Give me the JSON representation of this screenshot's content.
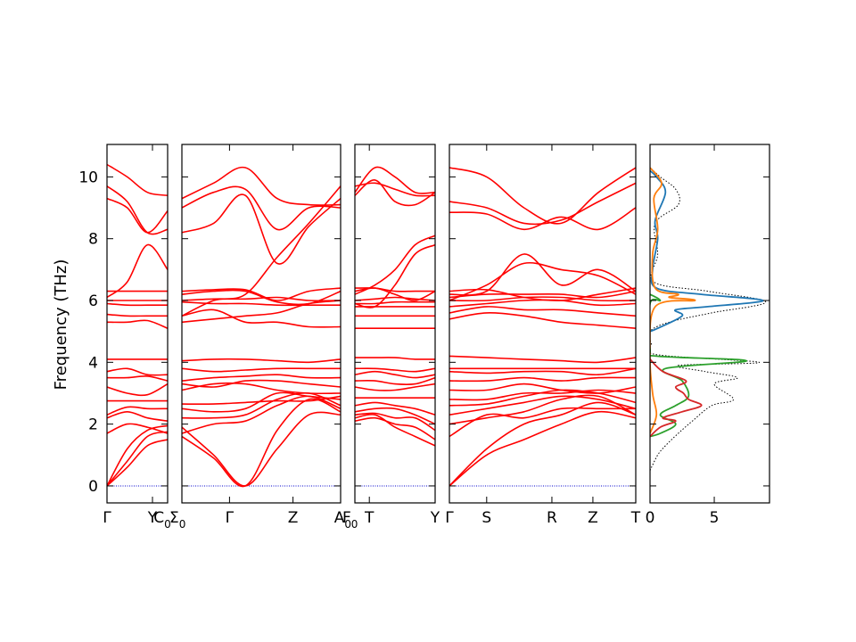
{
  "chart_data": {
    "type": "line",
    "description_free": true,
    "ylabel": "Frequency (THz)",
    "ylim": [
      -0.55,
      11.05
    ],
    "y_ticks": [
      "0",
      "2",
      "4",
      "6",
      "8",
      "10"
    ],
    "y_tick_values": [
      0,
      2,
      4,
      6,
      8,
      10
    ],
    "band_color": "#ff0000",
    "zero_line_color": "#0000cc",
    "panels": [
      {
        "id": "p1",
        "x_ticks": [
          {
            "label": "Γ",
            "pos": 0
          },
          {
            "label": "Y",
            "pos": 0.75
          }
        ],
        "end_labels": [
          {
            "label": "C",
            "sub": "0"
          }
        ],
        "bands": [
          [
            0,
            0.6,
            1.3,
            1.5
          ],
          [
            0,
            0.8,
            1.6,
            1.75
          ],
          [
            0,
            1.2,
            1.8,
            1.95
          ],
          [
            1.7,
            2.0,
            1.9,
            1.7
          ],
          [
            2.2,
            2.4,
            2.2,
            2.1
          ],
          [
            2.3,
            2.55,
            2.5,
            2.5
          ],
          [
            2.75,
            2.75,
            2.75,
            2.75
          ],
          [
            3.2,
            3.0,
            2.95,
            3.3
          ],
          [
            3.5,
            3.5,
            3.55,
            3.4
          ],
          [
            3.7,
            3.8,
            3.6,
            3.6
          ],
          [
            4.1,
            4.1,
            4.1,
            4.1
          ],
          [
            5.3,
            5.3,
            5.35,
            5.1
          ],
          [
            5.55,
            5.5,
            5.5,
            5.5
          ],
          [
            5.9,
            5.85,
            5.85,
            5.85
          ],
          [
            6.0,
            6.0,
            6.0,
            6.0
          ],
          [
            6.3,
            6.3,
            6.3,
            6.3
          ],
          [
            6.1,
            6.6,
            7.8,
            7.0
          ],
          [
            9.3,
            9.0,
            8.2,
            8.9
          ],
          [
            9.7,
            9.2,
            8.2,
            8.3
          ],
          [
            10.4,
            10.0,
            9.5,
            9.4
          ]
        ]
      },
      {
        "id": "p2",
        "x_ticks": [
          {
            "label": "Σ",
            "sub": "0",
            "pos": 0
          },
          {
            "label": "Γ",
            "pos": 0.3
          },
          {
            "label": "Z",
            "pos": 0.7
          },
          {
            "label": "A",
            "sub": "0",
            "pos": 1
          }
        ],
        "bands": [
          [
            1.9,
            1.0,
            0,
            1.2,
            2.3,
            2.3
          ],
          [
            1.6,
            0.9,
            0,
            1.8,
            2.8,
            2.4
          ],
          [
            1.7,
            2.0,
            2.1,
            2.6,
            2.9,
            2.5
          ],
          [
            2.2,
            2.2,
            2.3,
            2.8,
            3.0,
            2.6
          ],
          [
            2.5,
            2.4,
            2.5,
            3.0,
            2.9,
            2.8
          ],
          [
            2.65,
            2.65,
            2.7,
            2.75,
            2.75,
            2.9
          ],
          [
            3.1,
            3.3,
            3.3,
            3.1,
            3.0,
            3.0
          ],
          [
            3.3,
            3.2,
            3.4,
            3.4,
            3.3,
            3.2
          ],
          [
            3.4,
            3.5,
            3.55,
            3.6,
            3.5,
            3.5
          ],
          [
            3.8,
            3.7,
            3.75,
            3.8,
            3.8,
            3.8
          ],
          [
            4.05,
            4.1,
            4.1,
            4.05,
            4.0,
            4.1
          ],
          [
            5.3,
            5.4,
            5.5,
            5.6,
            5.9,
            6.0
          ],
          [
            5.5,
            5.7,
            5.3,
            5.3,
            5.15,
            5.15
          ],
          [
            5.95,
            5.9,
            5.9,
            5.85,
            5.85,
            5.85
          ],
          [
            6.0,
            6.05,
            6.05,
            6.1,
            6.0,
            6.0
          ],
          [
            6.2,
            6.3,
            6.3,
            5.95,
            5.9,
            6.3
          ],
          [
            6.3,
            6.35,
            6.35,
            6.0,
            6.3,
            6.4
          ],
          [
            5.5,
            6.0,
            6.2,
            7.4,
            8.5,
            9.7
          ],
          [
            8.2,
            8.5,
            9.4,
            7.2,
            8.4,
            9.3
          ],
          [
            9.0,
            9.5,
            9.6,
            8.3,
            9.0,
            9.0
          ],
          [
            9.3,
            9.8,
            10.3,
            9.3,
            9.1,
            9.1
          ]
        ]
      },
      {
        "id": "p3",
        "x_ticks": [
          {
            "label": "F",
            "sub": "0",
            "pos": 0
          },
          {
            "label": "T",
            "pos": 0.18
          },
          {
            "label": "Y",
            "pos": 1
          }
        ],
        "bands": [
          [
            2.2,
            2.3,
            1.9,
            1.6,
            1.3
          ],
          [
            2.1,
            2.2,
            2.0,
            1.9,
            1.5
          ],
          [
            2.3,
            2.35,
            2.2,
            2.2,
            1.8
          ],
          [
            2.4,
            2.5,
            2.5,
            2.3,
            2.0
          ],
          [
            2.6,
            2.7,
            2.6,
            2.5,
            2.3
          ],
          [
            2.85,
            2.85,
            2.85,
            2.85,
            2.85
          ],
          [
            3.2,
            3.1,
            3.1,
            3.2,
            3.3
          ],
          [
            3.4,
            3.4,
            3.3,
            3.3,
            3.5
          ],
          [
            3.6,
            3.7,
            3.6,
            3.5,
            3.6
          ],
          [
            3.8,
            3.8,
            3.75,
            3.7,
            3.8
          ],
          [
            4.15,
            4.15,
            4.15,
            4.1,
            4.1
          ],
          [
            5.1,
            5.1,
            5.1,
            5.1,
            5.1
          ],
          [
            5.5,
            5.5,
            5.5,
            5.5,
            5.5
          ],
          [
            5.8,
            5.8,
            5.8,
            5.8,
            5.8
          ],
          [
            5.9,
            5.9,
            5.95,
            5.95,
            5.95
          ],
          [
            6.0,
            6.05,
            6.1,
            6.05,
            6.0
          ],
          [
            6.3,
            6.4,
            6.2,
            6.0,
            6.3
          ],
          [
            6.4,
            6.4,
            6.3,
            6.3,
            6.3
          ],
          [
            5.9,
            5.8,
            6.5,
            7.5,
            7.8
          ],
          [
            6.2,
            6.5,
            7.0,
            7.8,
            8.1
          ],
          [
            9.4,
            9.9,
            9.2,
            9.1,
            9.5
          ],
          [
            9.7,
            9.8,
            9.6,
            9.4,
            9.4
          ],
          [
            9.5,
            10.3,
            10.0,
            9.5,
            9.5
          ]
        ]
      },
      {
        "id": "p4",
        "x_ticks": [
          {
            "label": "Γ",
            "pos": 0
          },
          {
            "label": "S",
            "pos": 0.2
          },
          {
            "label": "R",
            "pos": 0.55
          },
          {
            "label": "Z",
            "pos": 0.77
          },
          {
            "label": "T",
            "pos": 1
          }
        ],
        "bands": [
          [
            0,
            1.0,
            1.5,
            2.0,
            2.4,
            2.2
          ],
          [
            0,
            1.2,
            2.0,
            2.3,
            2.7,
            2.3
          ],
          [
            1.6,
            2.3,
            2.2,
            2.5,
            2.5,
            2.5
          ],
          [
            2.0,
            2.2,
            2.4,
            2.8,
            2.9,
            2.3
          ],
          [
            2.3,
            2.5,
            2.7,
            2.9,
            2.8,
            2.5
          ],
          [
            2.6,
            2.65,
            2.9,
            3.1,
            3.0,
            2.7
          ],
          [
            2.8,
            2.8,
            3.0,
            3.0,
            3.1,
            3.0
          ],
          [
            3.1,
            3.1,
            3.3,
            3.1,
            3.0,
            3.2
          ],
          [
            3.4,
            3.4,
            3.5,
            3.4,
            3.5,
            3.5
          ],
          [
            3.7,
            3.65,
            3.7,
            3.7,
            3.6,
            3.8
          ],
          [
            3.8,
            3.8,
            3.8,
            3.8,
            3.8,
            3.8
          ],
          [
            4.2,
            4.15,
            4.1,
            4.05,
            4.0,
            4.15
          ],
          [
            5.4,
            5.6,
            5.5,
            5.3,
            5.2,
            5.1
          ],
          [
            5.6,
            5.8,
            5.7,
            5.7,
            5.6,
            5.5
          ],
          [
            5.8,
            5.9,
            6.0,
            6.0,
            5.85,
            5.9
          ],
          [
            6.0,
            6.0,
            6.1,
            6.1,
            6.0,
            6.0
          ],
          [
            6.1,
            6.2,
            6.2,
            6.2,
            6.1,
            6.3
          ],
          [
            6.3,
            6.35,
            6.1,
            6.0,
            6.2,
            6.4
          ],
          [
            6.2,
            6.3,
            7.5,
            6.5,
            7.0,
            6.3
          ],
          [
            6.0,
            6.5,
            7.2,
            7.0,
            6.8,
            6.2
          ],
          [
            8.85,
            8.8,
            8.3,
            8.7,
            8.3,
            9.0
          ],
          [
            9.2,
            9.0,
            8.5,
            8.6,
            9.2,
            9.8
          ],
          [
            10.3,
            10.0,
            9.0,
            8.5,
            9.5,
            10.3
          ]
        ]
      }
    ],
    "dos_panel": {
      "xlim": [
        0,
        9.3
      ],
      "x_ticks": [
        "0",
        "5"
      ],
      "x_tick_values": [
        0,
        5
      ],
      "series": [
        {
          "color": "#000000",
          "style": "dotted",
          "points": [
            [
              0,
              0.5
            ],
            [
              0.6,
              1.0
            ],
            [
              1.2,
              1.3
            ],
            [
              2.2,
              1.7
            ],
            [
              3.3,
              2.1
            ],
            [
              4.8,
              2.6
            ],
            [
              6.5,
              2.8
            ],
            [
              5.0,
              3.3
            ],
            [
              6.8,
              3.5
            ],
            [
              4.3,
              3.7
            ],
            [
              2.2,
              3.9
            ],
            [
              8.5,
              4.0
            ],
            [
              0.5,
              4.25
            ],
            [
              0.1,
              4.6
            ],
            [
              0,
              5.0
            ],
            [
              1.5,
              5.3
            ],
            [
              4.8,
              5.6
            ],
            [
              9.0,
              5.95
            ],
            [
              4.5,
              6.3
            ],
            [
              0.3,
              6.6
            ],
            [
              0.6,
              7.5
            ],
            [
              0.4,
              8.5
            ],
            [
              2.2,
              9.1
            ],
            [
              2.0,
              9.6
            ],
            [
              0.8,
              10.0
            ],
            [
              0,
              10.3
            ]
          ]
        },
        {
          "color": "#1f77b4",
          "style": "solid",
          "points": [
            [
              0,
              5.0
            ],
            [
              0.6,
              5.1
            ],
            [
              2.5,
              5.5
            ],
            [
              2.0,
              5.7
            ],
            [
              4.5,
              5.8
            ],
            [
              8.8,
              6.0
            ],
            [
              4.0,
              6.2
            ],
            [
              0.5,
              6.4
            ],
            [
              0.2,
              7.0
            ],
            [
              0.6,
              8.0
            ],
            [
              0.4,
              8.6
            ],
            [
              1.2,
              9.5
            ],
            [
              0.5,
              10.0
            ],
            [
              0,
              10.2
            ]
          ]
        },
        {
          "color": "#ff7f0e",
          "style": "solid",
          "points": [
            [
              0,
              1.7
            ],
            [
              0.5,
              2.3
            ],
            [
              0.2,
              3.0
            ],
            [
              0,
              4.2
            ],
            [
              0.4,
              5.8
            ],
            [
              3.5,
              6.0
            ],
            [
              1.5,
              6.1
            ],
            [
              2.2,
              6.2
            ],
            [
              0.4,
              6.4
            ],
            [
              0.2,
              7.5
            ],
            [
              0.6,
              8.3
            ],
            [
              0.3,
              9.3
            ],
            [
              0.9,
              9.8
            ],
            [
              0,
              10.3
            ]
          ]
        },
        {
          "color": "#2ca02c",
          "style": "solid",
          "points": [
            [
              0,
              1.6
            ],
            [
              0.8,
              1.7
            ],
            [
              2.0,
              2.0
            ],
            [
              0.8,
              2.3
            ],
            [
              2.0,
              2.6
            ],
            [
              3.0,
              2.9
            ],
            [
              2.5,
              3.4
            ],
            [
              1.2,
              3.8
            ],
            [
              7.5,
              4.05
            ],
            [
              0.5,
              4.2
            ],
            [
              0,
              4.4
            ],
            [
              0,
              5.9
            ],
            [
              0.8,
              6.0
            ],
            [
              0,
              6.2
            ]
          ]
        },
        {
          "color": "#d62728",
          "style": "solid",
          "points": [
            [
              0,
              1.6
            ],
            [
              0.8,
              1.9
            ],
            [
              2.0,
              2.1
            ],
            [
              1.0,
              2.2
            ],
            [
              2.5,
              2.4
            ],
            [
              4.0,
              2.6
            ],
            [
              3.0,
              2.8
            ],
            [
              2.6,
              3.0
            ],
            [
              2.0,
              3.2
            ],
            [
              2.8,
              3.4
            ],
            [
              1.0,
              3.7
            ],
            [
              0,
              4.1
            ]
          ]
        }
      ]
    }
  }
}
